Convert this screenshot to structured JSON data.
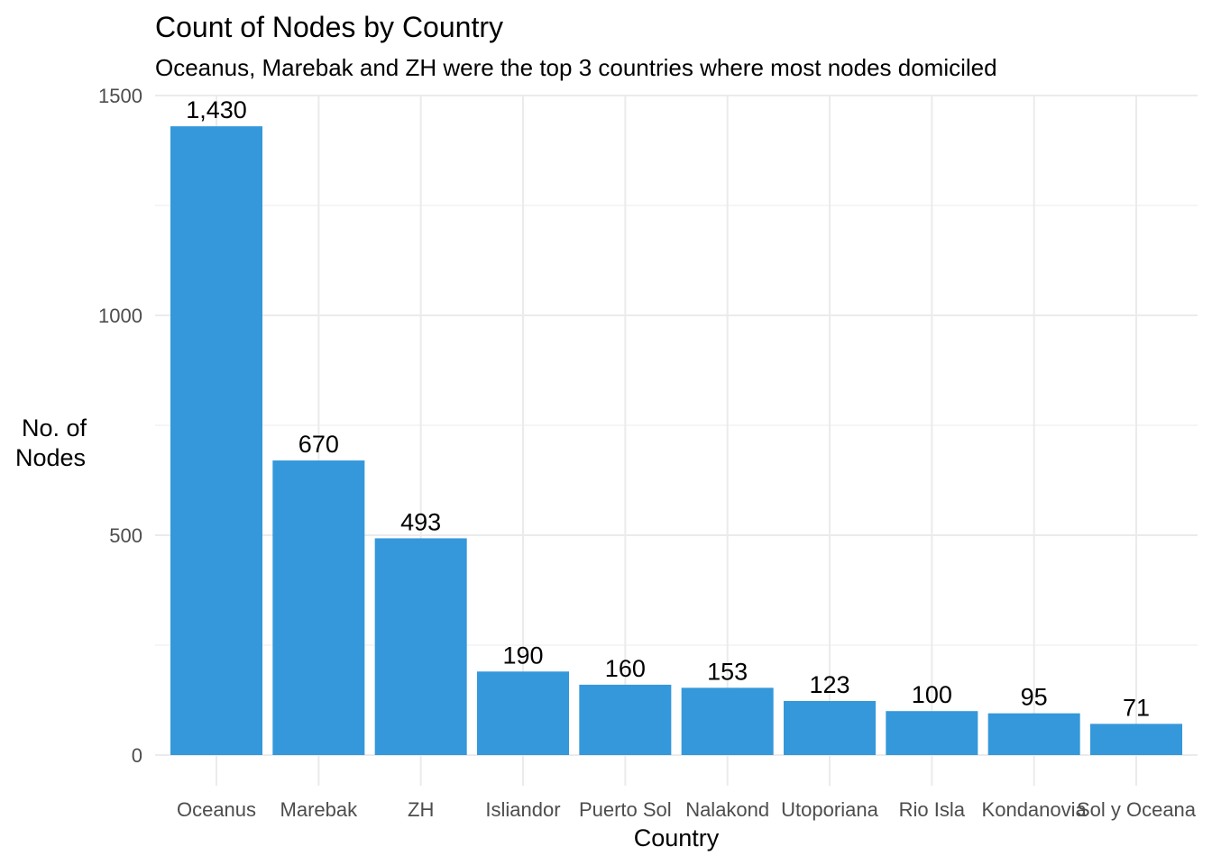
{
  "chart_data": {
    "type": "bar",
    "title": "Count of Nodes by Country",
    "subtitle": "Oceanus, Marebak and ZH were the top 3 countries where most nodes domiciled",
    "xlabel": "Country",
    "ylabel_lines": [
      "No. of",
      "Nodes"
    ],
    "categories": [
      "Oceanus",
      "Marebak",
      "ZH",
      "Isliandor",
      "Puerto Sol",
      "Nalakond",
      "Utoporiana",
      "Rio Isla",
      "Kondanovia",
      "Sol y Oceana"
    ],
    "values": [
      1430,
      670,
      493,
      190,
      160,
      153,
      123,
      100,
      95,
      71
    ],
    "data_labels": [
      "1,430",
      "670",
      "493",
      "190",
      "160",
      "153",
      "123",
      "100",
      "95",
      "71"
    ],
    "ylim": [
      0,
      1500
    ],
    "yticks": [
      0,
      500,
      1000,
      1500
    ],
    "ytick_labels": [
      "0",
      "500",
      "1000",
      "1500"
    ],
    "grid": true,
    "bar_color": "#3498DB",
    "grid_color": "#EBEBEB"
  }
}
